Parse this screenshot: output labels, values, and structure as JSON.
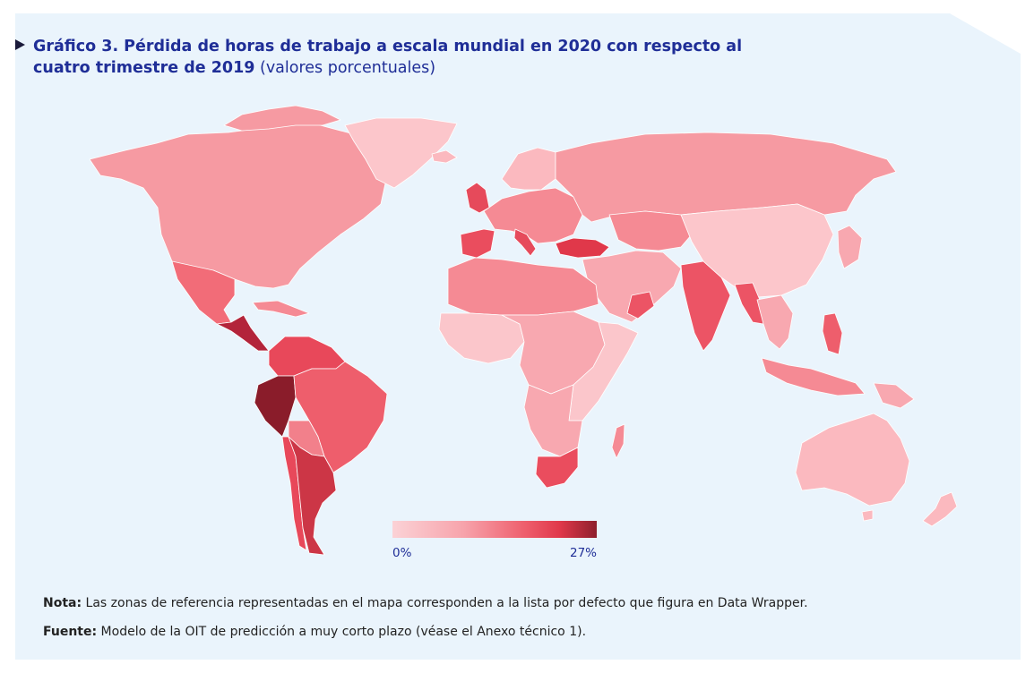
{
  "title": {
    "main": "Gráfico 3.  Pérdida de horas de trabajo a escala mundial en 2020 con respecto al cuatro trimestre de 2019",
    "subtitle": "(valores porcentuales)"
  },
  "legend": {
    "min_label": "0%",
    "max_label": "27%",
    "min_value": 0,
    "max_value": 27,
    "colors": [
      "#fbd2d6",
      "#f7a3ab",
      "#ee5e6c",
      "#e0384a",
      "#8e1f2c"
    ]
  },
  "notes": {
    "nota_label": "Nota:",
    "nota_text": "Las zonas de referencia representadas en el mapa corresponden a la lista por defecto que figura en Data Wrapper.",
    "fuente_label": "Fuente:",
    "fuente_text": "Modelo de la OIT de predicción a muy corto plazo (véase el Anexo técnico 1)."
  },
  "regions": {
    "north_america": "#f69aa2",
    "greenland": "#fcc6cb",
    "mexico": "#f26c78",
    "central_america": "#b3243a",
    "caribbean": "#f58a94",
    "colombia_venezuela": "#e8485a",
    "peru": "#8a1c2a",
    "brazil": "#ee5e6c",
    "bolivia_paraguay": "#f2808b",
    "argentina": "#cc3646",
    "chile": "#e8485a",
    "europe": "#f58a94",
    "spain_portugal": "#ea4d5e",
    "uk_ireland": "#e64a5b",
    "italy": "#e64a5b",
    "scandinavia": "#fbb9bf",
    "russia": "#f69aa2",
    "turkey": "#e0384a",
    "central_asia": "#f58a94",
    "middle_east": "#f8a8b0",
    "north_africa": "#f58a94",
    "west_africa": "#fbc6cb",
    "central_africa": "#f8a8b0",
    "east_africa": "#fbc6cb",
    "south_africa": "#ea4d5e",
    "madagascar": "#f58a94",
    "india": "#ec5465",
    "china_mongolia": "#fcc6cb",
    "southeast_asia": "#f8a8b0",
    "japan_korea": "#f8a8b0",
    "philippines": "#ee5e6c",
    "indonesia": "#f58a94",
    "png": "#f8a8b0",
    "australia": "#fbb9bf",
    "new_zealand": "#fbb9bf"
  }
}
